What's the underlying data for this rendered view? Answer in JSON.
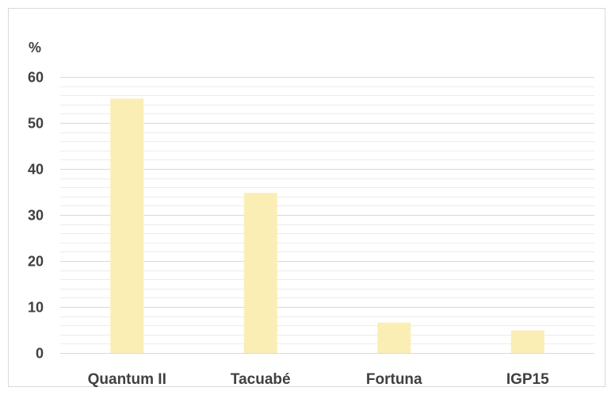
{
  "chart_data": {
    "type": "bar",
    "ylabel": "%",
    "categories": [
      "Quantum II",
      "Tacuabé",
      "Fortuna",
      "IGP15"
    ],
    "values": [
      55.3,
      34.8,
      6.6,
      4.9
    ],
    "ylim": [
      0,
      60
    ],
    "yticks": [
      0,
      10,
      20,
      30,
      40,
      50,
      60
    ],
    "grid": true,
    "minor_grid": true,
    "legend": "none",
    "colors": {
      "bar": "#fbeeb5",
      "major_grid": "#d9d9d9",
      "minor_grid": "#ececec",
      "text": "#404040",
      "frame": "#d9d9d9"
    }
  }
}
